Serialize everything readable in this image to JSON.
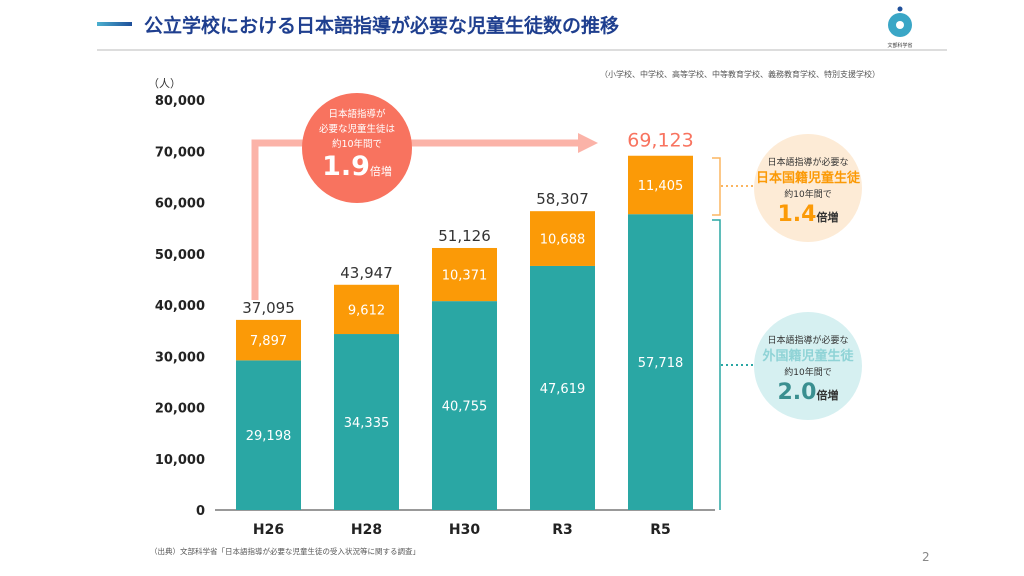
{
  "header": {
    "title": "公立学校における日本語指導が必要な児童生徒数の推移",
    "logo_text": "文部科学省",
    "note": "（小学校、中学校、高等学校、中等教育学校、義務教育学校、特別支援学校）"
  },
  "chart_data": {
    "type": "bar",
    "stacked": true,
    "title": "公立学校における日本語指導が必要な児童生徒数の推移",
    "ylabel": "（人）",
    "ylim": [
      0,
      80000
    ],
    "yticks": [
      "0",
      "10,000",
      "20,000",
      "30,000",
      "40,000",
      "50,000",
      "60,000",
      "70,000",
      "80,000"
    ],
    "categories": [
      "H26",
      "H28",
      "H30",
      "R3",
      "R5"
    ],
    "series": [
      {
        "name": "外国籍児童生徒",
        "color": "#2aa7a4",
        "values": [
          29198,
          34335,
          40755,
          47619,
          57718
        ],
        "labels": [
          "29,198",
          "34,335",
          "40,755",
          "47,619",
          "57,718"
        ]
      },
      {
        "name": "日本国籍児童生徒",
        "color": "#fb9a07",
        "values": [
          7897,
          9612,
          10371,
          10688,
          11405
        ],
        "labels": [
          "7,897",
          "9,612",
          "10,371",
          "10,688",
          "11,405"
        ]
      }
    ],
    "totals": [
      37095,
      43947,
      51126,
      58307,
      69123
    ],
    "total_labels": [
      "37,095",
      "43,947",
      "51,126",
      "58,307",
      "69,123"
    ]
  },
  "callouts": {
    "overall": {
      "l1": "日本語指導が",
      "l2": "必要な児童生徒は",
      "l3": "約10年間で",
      "num": "1.9",
      "suffix": "倍増"
    },
    "japanese": {
      "l1": "日本語指導が必要な",
      "l2": "日本国籍児童生徒",
      "l3": "約10年間で",
      "num": "1.4",
      "suffix": "倍増"
    },
    "foreign": {
      "l1": "日本語指導が必要な",
      "l2": "外国籍児童生徒",
      "l3": "約10年間で",
      "num": "2.0",
      "suffix": "倍増"
    }
  },
  "footer": {
    "source": "（出典）文部科学省「日本語指導が必要な児童生徒の受入状況等に関する調査」",
    "page": "2"
  }
}
